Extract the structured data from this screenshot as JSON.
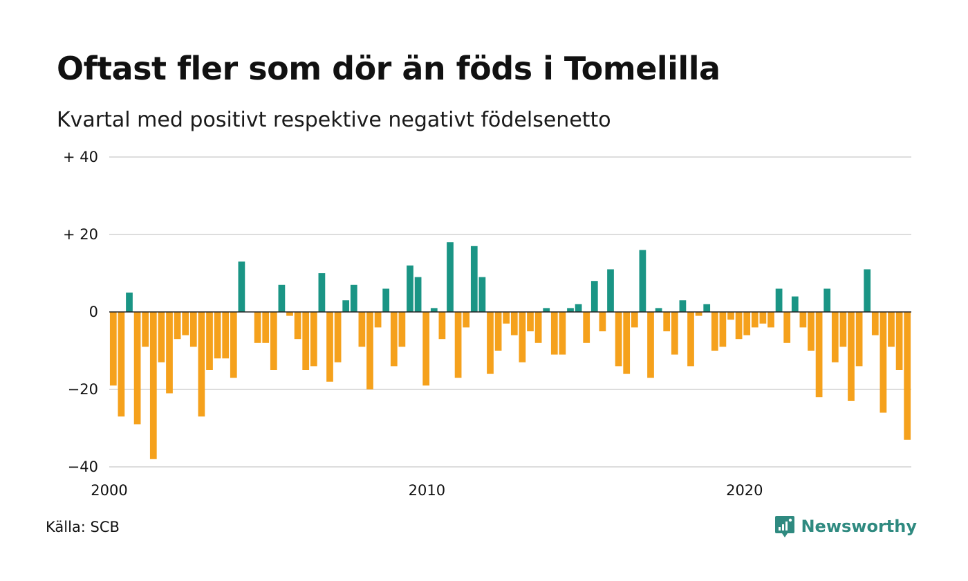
{
  "header": {
    "title": "Oftast fler som dör än föds i Tomelilla",
    "subtitle": "Kvartal med positivt respektive negativt födelsenetto"
  },
  "footer": {
    "source": "Källa: SCB",
    "brand": "Newsworthy",
    "brand_icon": "newsworthy-logo-icon"
  },
  "colors": {
    "positive": "#1a9585",
    "negative": "#f5a11c",
    "grid": "#dddddd",
    "baseline": "#222222",
    "brand": "#2f8a80"
  },
  "chart_data": {
    "type": "bar",
    "title": "Oftast fler som dör än föds i Tomelilla",
    "subtitle": "Kvartal med positivt respektive negativt födelsenetto",
    "xlabel": "",
    "ylabel": "",
    "ylim": [
      -40,
      40
    ],
    "y_ticks": [
      {
        "value": 40,
        "label": "+ 40"
      },
      {
        "value": 20,
        "label": "+ 20"
      },
      {
        "value": 0,
        "label": "0"
      },
      {
        "value": -20,
        "label": "−20"
      },
      {
        "value": -40,
        "label": "−40"
      }
    ],
    "x_ticks": [
      {
        "value": 2000,
        "label": "2000"
      },
      {
        "value": 2010,
        "label": "2010"
      },
      {
        "value": 2020,
        "label": "2020"
      }
    ],
    "xlim": [
      2000,
      2025.25
    ],
    "grid": true,
    "x_start": "2000 Q1",
    "x_period": "quarter",
    "values": [
      -19,
      -27,
      5,
      -29,
      -9,
      -38,
      -13,
      -21,
      -7,
      -6,
      -9,
      -27,
      -15,
      -12,
      -12,
      -17,
      13,
      0,
      -8,
      -8,
      -15,
      7,
      -1,
      -7,
      -15,
      -14,
      10,
      -18,
      -13,
      3,
      7,
      -9,
      -20,
      -4,
      6,
      -14,
      -9,
      12,
      9,
      -19,
      1,
      -7,
      18,
      -17,
      -4,
      17,
      9,
      -16,
      -10,
      -3,
      -6,
      -13,
      -5,
      -8,
      1,
      -11,
      -11,
      1,
      2,
      -8,
      8,
      -5,
      11,
      -14,
      -16,
      -4,
      16,
      -17,
      1,
      -5,
      -11,
      3,
      -14,
      -1,
      2,
      -10,
      -9,
      -2,
      -7,
      -6,
      -4,
      -3,
      -4,
      6,
      -8,
      4,
      -4,
      -10,
      -22,
      6,
      -13,
      -9,
      -23,
      -14,
      11,
      -6,
      -26,
      -9,
      -15,
      -33
    ]
  }
}
